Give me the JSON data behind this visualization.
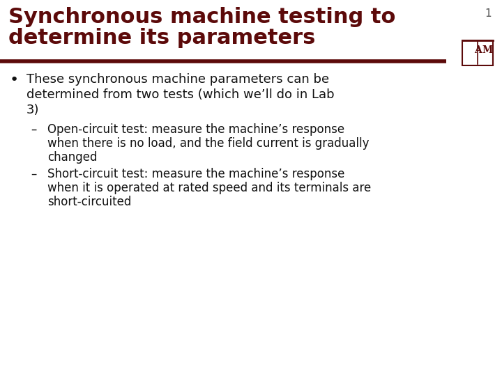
{
  "background_color": "#ffffff",
  "title_line1": "Synchronous machine testing to",
  "title_line2": "determine its parameters",
  "title_color": "#5c0a0a",
  "title_fontsize": 22,
  "divider_color": "#5c0a0a",
  "page_number": "1",
  "page_number_color": "#555555",
  "page_number_fontsize": 11,
  "bullet_fontsize": 13,
  "bullet_color": "#111111",
  "sub_bullet_fontsize": 12,
  "sub_bullet_color": "#111111",
  "atm_logo_color": "#5c0a0a",
  "bullet_lines": [
    "These synchronous machine parameters can be",
    "determined from two tests (which we’ll do in Lab",
    "3)"
  ],
  "sub1_lines": [
    "Open-circuit test: measure the machine’s response",
    "when there is no load, and the field current is gradually",
    "changed"
  ],
  "sub2_lines": [
    "Short-circuit test: measure the machine’s response",
    "when it is operated at rated speed and its terminals are",
    "short-circuited"
  ]
}
